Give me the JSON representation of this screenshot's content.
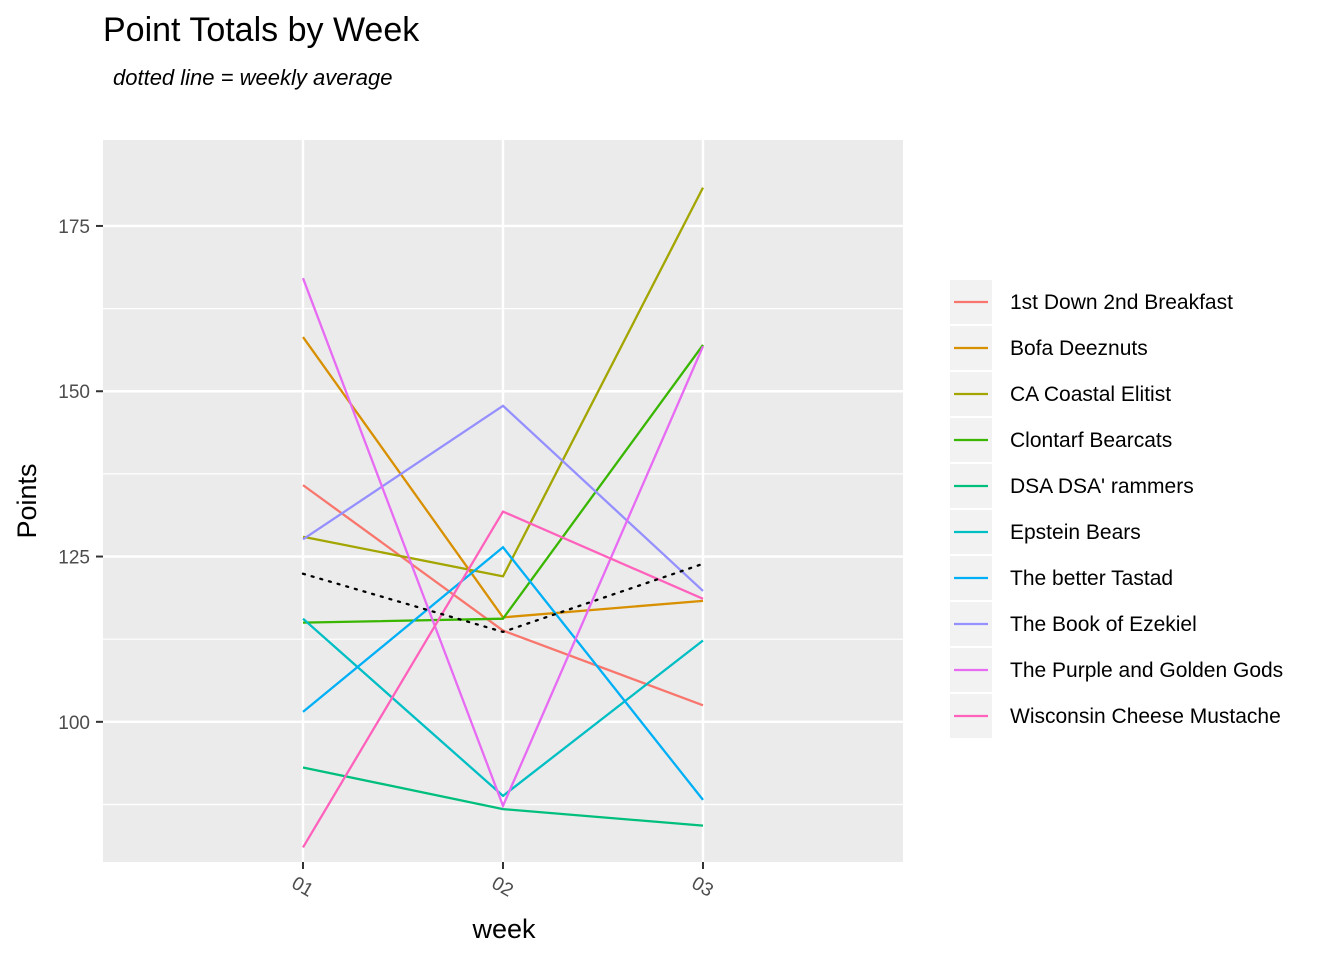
{
  "chart_data": {
    "type": "line",
    "title": "Point Totals by Week",
    "subtitle": "dotted line = weekly average",
    "xlabel": "week",
    "ylabel": "Points",
    "categories": [
      "01",
      "02",
      "03"
    ],
    "ylim": [
      78.8,
      188.0
    ],
    "yticks": [
      {
        "value": 100,
        "label": "100"
      },
      {
        "value": 125,
        "label": "125"
      },
      {
        "value": 150,
        "label": "150"
      },
      {
        "value": 175,
        "label": "175"
      }
    ],
    "minor_yticks": [
      87.5,
      112.5,
      137.5,
      162.5
    ],
    "grid": true,
    "legend_position": "right",
    "panel_background": "#ebebeb",
    "series": [
      {
        "name": "1st Down 2nd Breakfast",
        "color": "#f8766d",
        "values": [
          135.8,
          113.8,
          102.5
        ]
      },
      {
        "name": "Bofa Deeznuts",
        "color": "#d89000",
        "values": [
          158.2,
          115.8,
          118.3
        ]
      },
      {
        "name": "CA Coastal Elitist",
        "color": "#a3a500",
        "values": [
          128.0,
          122.0,
          180.8
        ]
      },
      {
        "name": "Clontarf Bearcats",
        "color": "#39b600",
        "values": [
          115.0,
          115.6,
          157.0
        ]
      },
      {
        "name": "DSA DSA' rammers",
        "color": "#00bf7d",
        "values": [
          93.1,
          86.8,
          84.3
        ]
      },
      {
        "name": "Epstein Bears",
        "color": "#00bfc4",
        "values": [
          115.6,
          88.8,
          112.3
        ]
      },
      {
        "name": "The better Tastad",
        "color": "#00b0f6",
        "values": [
          101.5,
          126.4,
          88.2
        ]
      },
      {
        "name": "The Book of Ezekiel",
        "color": "#9590ff",
        "values": [
          127.6,
          147.8,
          119.8
        ]
      },
      {
        "name": "The Purple and Golden Gods",
        "color": "#e76bf3",
        "values": [
          167.1,
          87.3,
          156.8
        ]
      },
      {
        "name": "Wisconsin Cheese Mustache",
        "color": "#ff62bc",
        "values": [
          81.0,
          131.8,
          118.6
        ]
      }
    ],
    "average": {
      "color": "#000000",
      "values": [
        122.4,
        113.6,
        123.9
      ]
    }
  }
}
